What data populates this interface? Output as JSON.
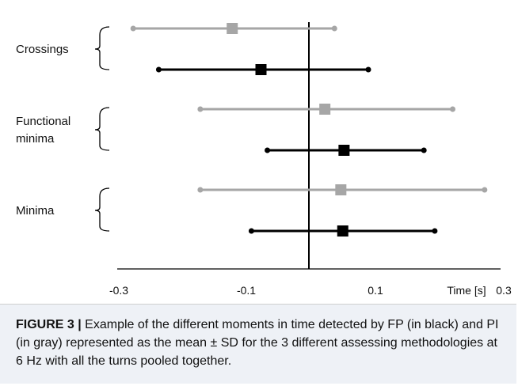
{
  "chart_data": {
    "type": "scatter",
    "subtype": "error-bar",
    "xlabel": "Time [s]",
    "xlim": [
      -0.3,
      0.3
    ],
    "x_ticks": [
      -0.3,
      -0.1,
      0.1,
      0.3
    ],
    "x_tick_labels": [
      "-0.3",
      "-0.1",
      "0.1",
      "0.3"
    ],
    "reference_line_x": 0,
    "groups": [
      {
        "label": [
          "Crossings"
        ],
        "rows": [
          {
            "color": "#a6a6a6",
            "mean": -0.12,
            "low": -0.275,
            "high": 0.04
          },
          {
            "color": "#000000",
            "mean": -0.075,
            "low": -0.235,
            "high": 0.093
          }
        ]
      },
      {
        "label": [
          "Functional",
          "minima"
        ],
        "rows": [
          {
            "color": "#a6a6a6",
            "mean": 0.025,
            "low": -0.17,
            "high": 0.225
          },
          {
            "color": "#000000",
            "mean": 0.055,
            "low": -0.065,
            "high": 0.18
          }
        ]
      },
      {
        "label": [
          "Minima"
        ],
        "rows": [
          {
            "color": "#a6a6a6",
            "mean": 0.05,
            "low": -0.17,
            "high": 0.275
          },
          {
            "color": "#000000",
            "mean": 0.053,
            "low": -0.09,
            "high": 0.197
          }
        ]
      }
    ]
  },
  "caption": {
    "figure_label": "FIGURE 3 |",
    "text": " Example of the different moments in time detected by FP (in black) and PI (in gray) represented as the mean ± SD for the 3 different assessing methodologies at 6 Hz with all the turns pooled together."
  }
}
